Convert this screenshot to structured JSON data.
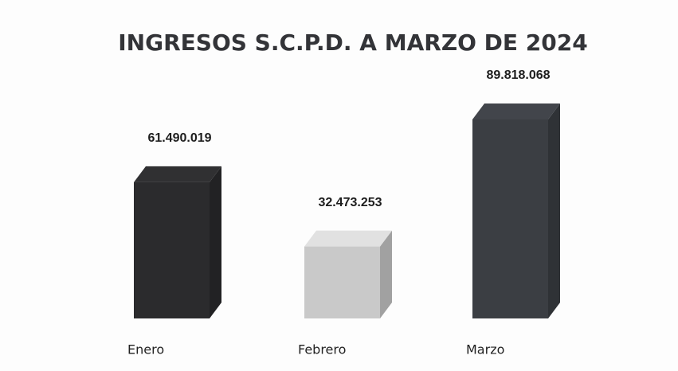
{
  "chart_data": {
    "type": "bar3d",
    "title": "INGRESOS S.C.P.D. A MARZO DE 2024",
    "categories": [
      "Enero",
      "Febrero",
      "Marzo"
    ],
    "values": [
      61490019,
      32473253,
      89818068
    ],
    "value_labels": [
      "61.490.019",
      "32.473.253",
      "89.818.068"
    ],
    "colors": [
      "#2b2b2d",
      "#c9c9c9",
      "#3b3e43"
    ]
  }
}
